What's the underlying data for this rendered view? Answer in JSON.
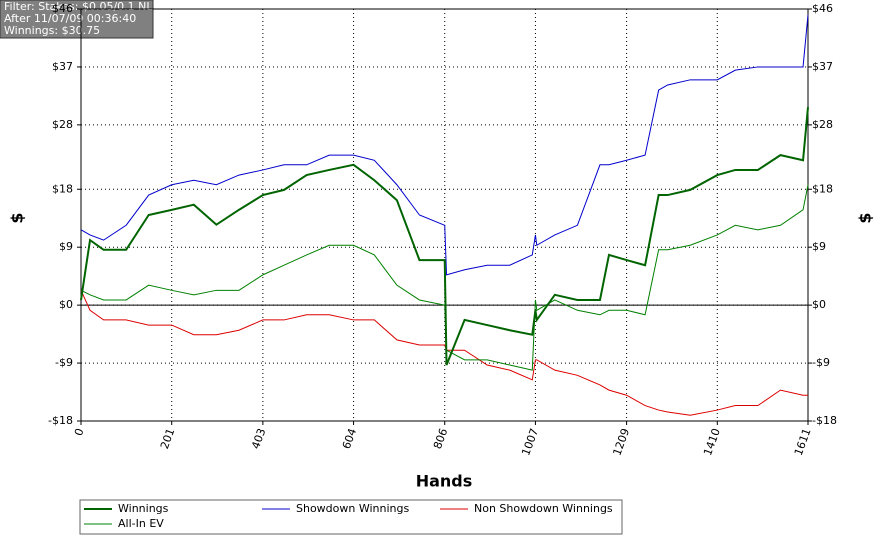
{
  "chart_data": {
    "type": "line",
    "annotations": [
      "Filter: Stakes: $0.05/0.1 NL",
      "After 11/07/09 00:36:40",
      "Winnings: $30.75"
    ],
    "x_label": "Hands",
    "y_label": "$",
    "x": [
      0,
      20,
      50,
      100,
      150,
      201,
      250,
      300,
      350,
      403,
      450,
      500,
      550,
      604,
      650,
      700,
      750,
      806,
      810,
      850,
      900,
      950,
      1000,
      1007,
      1010,
      1050,
      1100,
      1150,
      1170,
      1209,
      1250,
      1280,
      1300,
      1350,
      1410,
      1450,
      1500,
      1550,
      1600,
      1611
    ],
    "series": [
      {
        "name": "Winnings",
        "color": "#006400",
        "width": 2,
        "values": [
          0.8,
          10.1,
          8.6,
          8.6,
          14.0,
          14.8,
          15.6,
          12.5,
          14.8,
          17.1,
          17.9,
          20.2,
          21.0,
          21.8,
          19.4,
          16.3,
          7.0,
          7.0,
          -9.3,
          -2.3,
          -3.1,
          -3.9,
          -4.6,
          -0.8,
          -2.3,
          1.6,
          0.8,
          0.8,
          7.8,
          7.0,
          6.2,
          17.1,
          17.1,
          17.9,
          20.2,
          21.0,
          21.0,
          23.3,
          22.5,
          30.75
        ]
      },
      {
        "name": "Showdown Winnings",
        "color": "#0000cc",
        "width": 1,
        "values": [
          11.7,
          10.9,
          10.1,
          12.4,
          17.1,
          18.7,
          19.4,
          18.7,
          20.2,
          21.0,
          21.8,
          21.8,
          23.3,
          23.3,
          22.5,
          18.7,
          14.0,
          12.4,
          4.7,
          5.5,
          6.2,
          6.2,
          7.8,
          10.9,
          9.3,
          10.9,
          12.4,
          21.8,
          21.8,
          22.5,
          23.3,
          33.4,
          34.2,
          35.0,
          35.0,
          36.5,
          37.0,
          37.0,
          37.0,
          45.1
        ]
      },
      {
        "name": "Non Showdown Winnings",
        "color": "#dd0000",
        "width": 1,
        "values": [
          2.3,
          -0.8,
          -2.3,
          -2.3,
          -3.1,
          -3.1,
          -4.6,
          -4.6,
          -3.9,
          -2.3,
          -2.3,
          -1.5,
          -1.5,
          -2.3,
          -2.3,
          -5.4,
          -6.2,
          -6.2,
          -7.0,
          -7.0,
          -9.3,
          -10.1,
          -11.6,
          -8.5,
          -8.5,
          -10.1,
          -10.9,
          -12.4,
          -13.2,
          -14.0,
          -15.6,
          -16.3,
          -16.6,
          -17.1,
          -16.3,
          -15.6,
          -15.6,
          -13.2,
          -14.0,
          -14.0
        ]
      },
      {
        "name": "All-In EV",
        "color": "#008000",
        "width": 1,
        "values": [
          2.3,
          1.6,
          0.8,
          0.8,
          3.1,
          2.3,
          1.6,
          2.3,
          2.3,
          4.7,
          6.2,
          7.8,
          9.3,
          9.3,
          7.8,
          3.1,
          0.8,
          0.0,
          -7.0,
          -8.5,
          -8.5,
          -9.3,
          -10.1,
          0.8,
          -0.8,
          0.8,
          -0.8,
          -1.5,
          -0.8,
          -0.8,
          -1.5,
          8.6,
          8.6,
          9.3,
          10.9,
          12.4,
          11.7,
          12.4,
          14.8,
          18.7
        ]
      }
    ],
    "xlim": [
      0,
      1611
    ],
    "xticks": [
      0,
      201,
      403,
      604,
      806,
      1007,
      1209,
      1410,
      1611
    ],
    "ylim": [
      -18,
      46
    ],
    "yticks": [
      {
        "value": -18,
        "label": "-$18"
      },
      {
        "value": -9,
        "label": "-$9"
      },
      {
        "value": 0,
        "label": "$0"
      },
      {
        "value": 9,
        "label": "$9"
      },
      {
        "value": 18,
        "label": "$18"
      },
      {
        "value": 28,
        "label": "$28"
      },
      {
        "value": 37,
        "label": "$37"
      },
      {
        "value": 46,
        "label": "$46"
      }
    ],
    "grid": true
  }
}
